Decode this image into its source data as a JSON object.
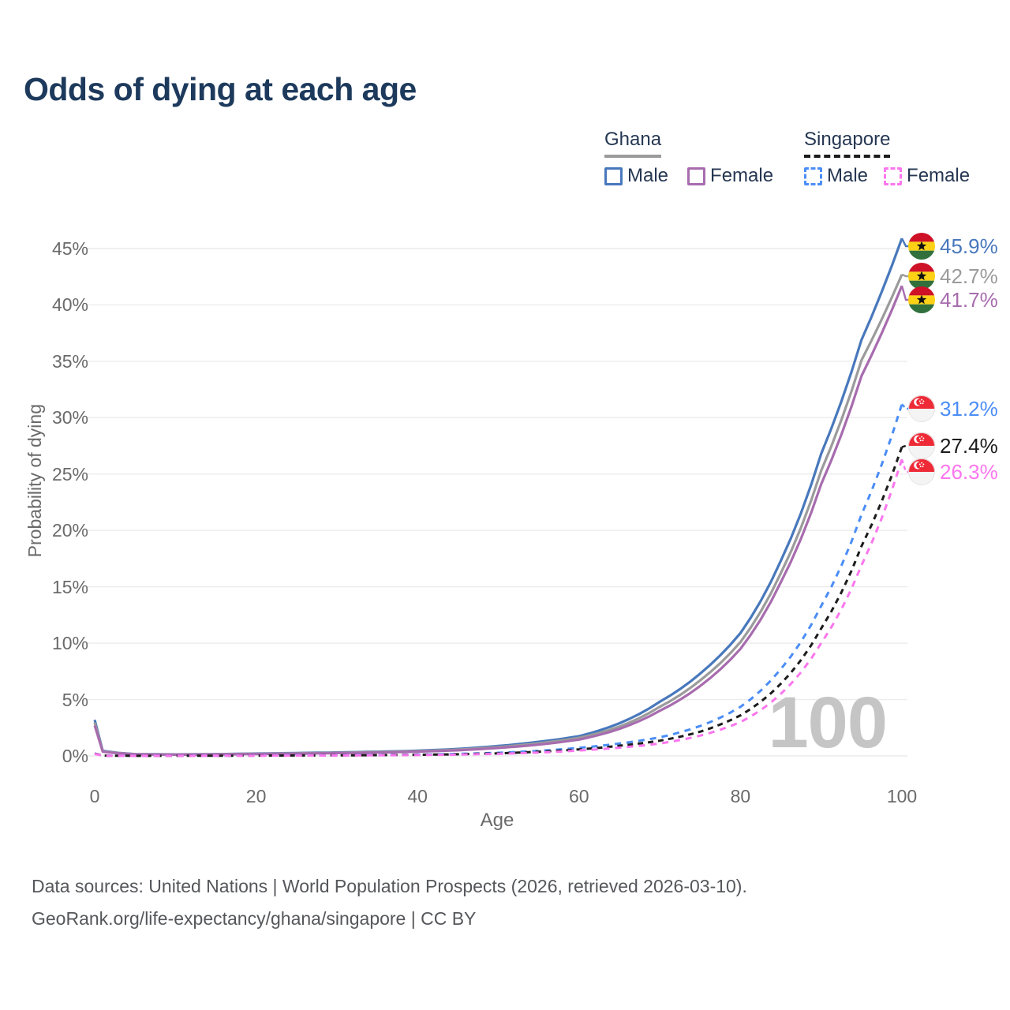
{
  "page": {
    "title": "Odds of dying at each age",
    "watermark": "100"
  },
  "legend": {
    "groups": [
      {
        "label": "Ghana",
        "line_style": "solid",
        "underline_series": 1,
        "items": [
          {
            "label": "Male",
            "series": 0
          },
          {
            "label": "Female",
            "series": 2
          }
        ]
      },
      {
        "label": "Singapore",
        "line_style": "dashed",
        "underline_series": 4,
        "items": [
          {
            "label": "Male",
            "series": 3
          },
          {
            "label": "Female",
            "series": 5
          }
        ]
      }
    ]
  },
  "chart_data": {
    "type": "line",
    "title": "Odds of dying at each age",
    "xlabel": "Age",
    "ylabel": "Probability of dying",
    "xlim": [
      0,
      100
    ],
    "ylim": [
      0,
      46
    ],
    "grid": "horizontal",
    "legend_position": "top-right",
    "x_ticks": [
      0,
      20,
      40,
      60,
      80,
      100
    ],
    "y_ticks": [
      "0%",
      "5%",
      "10%",
      "15%",
      "20%",
      "25%",
      "30%",
      "35%",
      "40%",
      "45%"
    ],
    "x": [
      0,
      1,
      5,
      10,
      15,
      20,
      25,
      30,
      35,
      40,
      45,
      50,
      55,
      60,
      65,
      70,
      75,
      80,
      85,
      90,
      95,
      100
    ],
    "series": [
      {
        "name": "Ghana Male",
        "country": "Ghana",
        "sex": "Male",
        "color": "#4878bc",
        "dash": "solid",
        "flag": "ghana",
        "end_label": "45.9%",
        "values": [
          3.2,
          0.45,
          0.16,
          0.13,
          0.16,
          0.21,
          0.26,
          0.31,
          0.37,
          0.46,
          0.62,
          0.88,
          1.25,
          1.75,
          2.9,
          4.8,
          7.3,
          10.9,
          17.3,
          26.8,
          36.9,
          45.9
        ]
      },
      {
        "name": "Ghana Both sexes",
        "country": "Ghana",
        "sex": "Both sexes",
        "color": "#9b9b9b",
        "dash": "solid",
        "flag": "ghana",
        "end_label": "42.7%",
        "values": [
          2.95,
          0.42,
          0.15,
          0.12,
          0.15,
          0.19,
          0.23,
          0.28,
          0.34,
          0.42,
          0.56,
          0.79,
          1.12,
          1.6,
          2.6,
          4.35,
          6.7,
          10.1,
          16.2,
          25.3,
          35.1,
          42.7
        ]
      },
      {
        "name": "Ghana Female",
        "country": "Ghana",
        "sex": "Female",
        "color": "#a76cae",
        "dash": "solid",
        "flag": "ghana",
        "end_label": "41.7%",
        "values": [
          2.7,
          0.38,
          0.14,
          0.11,
          0.13,
          0.17,
          0.2,
          0.25,
          0.3,
          0.38,
          0.5,
          0.71,
          1.0,
          1.45,
          2.4,
          4.0,
          6.2,
          9.5,
          15.4,
          24.1,
          33.7,
          41.7
        ]
      },
      {
        "name": "Singapore Male",
        "country": "Singapore",
        "sex": "Male",
        "color": "#4b8df6",
        "dash": "dashed",
        "flag": "singapore",
        "end_label": "31.2%",
        "values": [
          0.22,
          0.03,
          0.01,
          0.01,
          0.02,
          0.04,
          0.05,
          0.06,
          0.08,
          0.12,
          0.18,
          0.28,
          0.45,
          0.72,
          1.1,
          1.65,
          2.65,
          4.35,
          7.7,
          13.3,
          21.4,
          31.2
        ]
      },
      {
        "name": "Singapore Both sexes",
        "country": "Singapore",
        "sex": "Both sexes",
        "color": "#1c1c1c",
        "dash": "dashed",
        "flag": "singapore",
        "end_label": "27.4%",
        "values": [
          0.2,
          0.025,
          0.01,
          0.01,
          0.016,
          0.03,
          0.04,
          0.05,
          0.07,
          0.1,
          0.15,
          0.23,
          0.37,
          0.58,
          0.9,
          1.35,
          2.15,
          3.6,
          6.4,
          11.3,
          18.6,
          27.4
        ]
      },
      {
        "name": "Singapore Female",
        "country": "Singapore",
        "sex": "Female",
        "color": "#fb76ee",
        "dash": "dashed",
        "flag": "singapore",
        "end_label": "26.3%",
        "values": [
          0.18,
          0.02,
          0.01,
          0.008,
          0.013,
          0.02,
          0.03,
          0.04,
          0.05,
          0.08,
          0.12,
          0.19,
          0.3,
          0.48,
          0.73,
          1.1,
          1.8,
          3.0,
          5.5,
          10.0,
          16.9,
          26.3
        ]
      }
    ]
  },
  "footer": {
    "line1": "Data sources: United Nations | World Population Prospects (2026, retrieved 2026-03-10).",
    "line2": "GeoRank.org/life-expectancy/ghana/singapore | CC BY"
  }
}
